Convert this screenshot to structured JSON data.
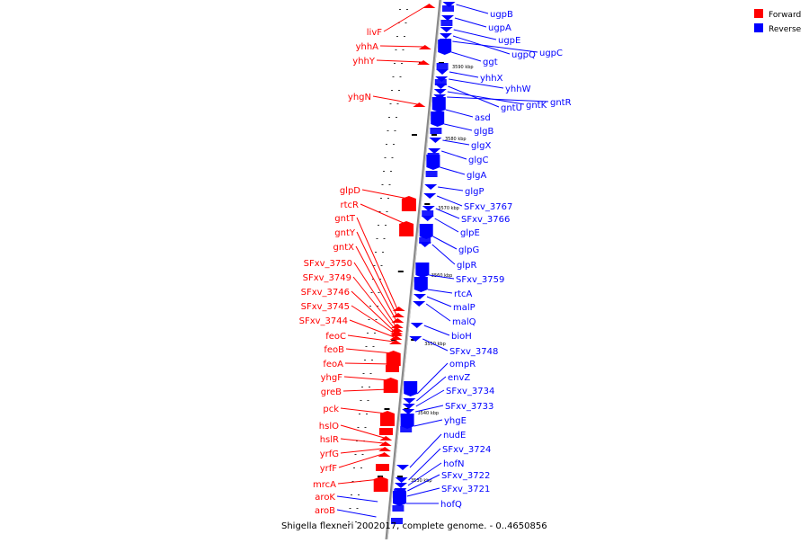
{
  "caption": "Shigella flexneri 2002017, complete genome. - 0..4650856",
  "legend": [
    {
      "label": "Forward",
      "color": "#ff0000"
    },
    {
      "label": "Reverse",
      "color": "#0000ff"
    }
  ],
  "colors": {
    "forward": "#ff0000",
    "reverse": "#0000ff",
    "backbone": "#999999"
  },
  "kbp_labels": [
    "3590 kbp",
    "3580 kbp",
    "3570 kbp",
    "3560 kbp",
    "3550 kbp",
    "3540 kbp",
    "3530 kbp"
  ],
  "forward_genes": [
    "livF",
    "yhhA",
    "yhhY",
    "yhgN",
    "glpD",
    "rtcR",
    "gntT",
    "gntY",
    "gntX",
    "SFxv_3750",
    "SFxv_3749",
    "SFxv_3746",
    "SFxv_3745",
    "SFxv_3744",
    "feoC",
    "feoB",
    "feoA",
    "yhgF",
    "greB",
    "pck",
    "hslO",
    "hslR",
    "yrfG",
    "yrfF",
    "mrcA",
    "aroK",
    "aroB"
  ],
  "reverse_genes": [
    "ugpB",
    "ugpA",
    "ugpE",
    "ugpQ",
    "ugpC",
    "ggt",
    "yhhX",
    "yhhW",
    "gntU",
    "gntK",
    "gntR",
    "asd",
    "glgB",
    "glgX",
    "glgC",
    "glgA",
    "glgP",
    "SFxv_3767",
    "SFxv_3766",
    "glpE",
    "glpG",
    "glpR",
    "SFxv_3759",
    "rtcA",
    "malP",
    "malQ",
    "bioH",
    "SFxv_3748",
    "ompR",
    "envZ",
    "SFxv_3734",
    "SFxv_3733",
    "yhgE",
    "nudE",
    "SFxv_3724",
    "hofN",
    "SFxv_3722",
    "SFxv_3721",
    "hofQ"
  ]
}
